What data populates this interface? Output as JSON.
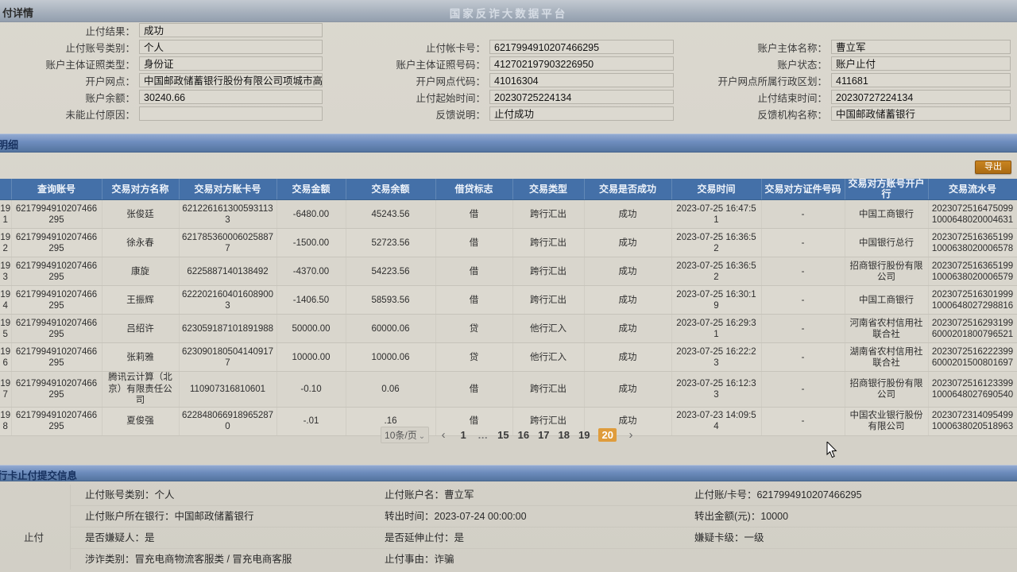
{
  "colors": {
    "page_background": "#d6d3ca",
    "table_header_blue": "#4470a8",
    "section_bar_blue": "#6d8cbd",
    "export_orange": "#ab6b12",
    "active_page_orange": "#df9c3c"
  },
  "window": {
    "left_title": "付详情",
    "center_title": "国家反诈大数据平台"
  },
  "top_form": {
    "col1": [
      {
        "label": "止付结果：",
        "value": "成功"
      },
      {
        "label": "止付账号类别：",
        "value": "个人"
      },
      {
        "label": "账户主体证照类型：",
        "value": "身份证"
      },
      {
        "label": "开户网点：",
        "value": "中国邮政储蓄银行股份有限公司项城市高寺..."
      },
      {
        "label": "账户余额：",
        "value": "30240.66"
      },
      {
        "label": "未能止付原因：",
        "value": ""
      }
    ],
    "col2": [
      {
        "label": "止付帐卡号：",
        "value": "6217994910207466295"
      },
      {
        "label": "账户主体证照号码：",
        "value": "412702197903226950"
      },
      {
        "label": "开户网点代码：",
        "value": "41016304"
      },
      {
        "label": "止付起始时间：",
        "value": "20230725224134"
      },
      {
        "label": "反馈说明：",
        "value": "止付成功"
      }
    ],
    "col3": [
      {
        "label": "账户主体名称：",
        "value": "曹立军"
      },
      {
        "label": "账户状态：",
        "value": "账户止付"
      },
      {
        "label": "开户网点所属行政区划：",
        "value": "411681"
      },
      {
        "label": "止付结束时间：",
        "value": "20230727224134"
      },
      {
        "label": "反馈机构名称：",
        "value": "中国邮政储蓄银行"
      }
    ]
  },
  "detail_section": {
    "title": "明细",
    "export_label": "导出"
  },
  "table": {
    "headers": [
      "",
      "查询账号",
      "交易对方名称",
      "交易对方账卡号",
      "交易金额",
      "交易余额",
      "借贷标志",
      "交易类型",
      "交易是否成功",
      "交易时间",
      "交易对方证件号码",
      "交易对方账号开户行",
      "交易流水号"
    ],
    "rows": [
      [
        "191",
        "6217994910207466295",
        "张俊廷",
        "6212261613005931133",
        "-6480.00",
        "45243.56",
        "借",
        "跨行汇出",
        "成功",
        "2023-07-25 16:47:51",
        "-",
        "中国工商银行",
        "20230725164750991000648020004631"
      ],
      [
        "192",
        "6217994910207466295",
        "徐永春",
        "6217853600060258877",
        "-1500.00",
        "52723.56",
        "借",
        "跨行汇出",
        "成功",
        "2023-07-25 16:36:52",
        "-",
        "中国银行总行",
        "20230725163651991000638020006578"
      ],
      [
        "193",
        "6217994910207466295",
        "康旋",
        "6225887140138492",
        "-4370.00",
        "54223.56",
        "借",
        "跨行汇出",
        "成功",
        "2023-07-25 16:36:52",
        "-",
        "招商银行股份有限公司",
        "20230725163651991000638020006579"
      ],
      [
        "194",
        "6217994910207466295",
        "王振辉",
        "6222021604016089003",
        "-1406.50",
        "58593.56",
        "借",
        "跨行汇出",
        "成功",
        "2023-07-25 16:30:19",
        "-",
        "中国工商银行",
        "20230725163019991000648027298816"
      ],
      [
        "195",
        "6217994910207466295",
        "吕绍许",
        "623059187101891988",
        "50000.00",
        "60000.06",
        "贷",
        "他行汇入",
        "成功",
        "2023-07-25 16:29:31",
        "-",
        "河南省农村信用社联合社",
        "20230725162931996000201800796521"
      ],
      [
        "196",
        "6217994910207466295",
        "张莉雅",
        "6230901805041409177",
        "10000.00",
        "10000.06",
        "贷",
        "他行汇入",
        "成功",
        "2023-07-25 16:22:23",
        "-",
        "湖南省农村信用社联合社",
        "20230725162223996000201500801697"
      ],
      [
        "197",
        "6217994910207466295",
        "腾讯云计算（北京）有限责任公司",
        "110907316810601",
        "-0.10",
        "0.06",
        "借",
        "跨行汇出",
        "成功",
        "2023-07-25 16:12:33",
        "-",
        "招商银行股份有限公司",
        "20230725161233991000648027690540"
      ],
      [
        "198",
        "6217994910207466295",
        "夏俊强",
        "6228480669189652870",
        "-.01",
        ".16",
        "借",
        "跨行汇出",
        "成功",
        "2023-07-23 14:09:54",
        "-",
        "中国农业银行股份有限公司",
        "20230723140954991000638020518963"
      ]
    ]
  },
  "pagination": {
    "page_size_label": "10条/页",
    "chevron_icon": "⌄",
    "items": [
      "‹",
      "1",
      "…",
      "15",
      "16",
      "17",
      "18",
      "19",
      "20",
      "›"
    ],
    "active_page": "20"
  },
  "submit_section": {
    "title": "行卡止付提交信息",
    "group_label": "止付",
    "rows": [
      [
        "止付账号类别：个人",
        "止付账户名：曹立军",
        "止付账/卡号：6217994910207466295"
      ],
      [
        "止付账户所在银行：中国邮政储蓄银行",
        "转出时间：2023-07-24 00:00:00",
        "转出金额(元)：10000"
      ],
      [
        "是否嫌疑人：是",
        "是否延伸止付：是",
        "嫌疑卡级：一级"
      ],
      [
        "涉诈类别：冒充电商物流客服类 / 冒充电商客服",
        "止付事由：诈骗",
        ""
      ]
    ]
  }
}
